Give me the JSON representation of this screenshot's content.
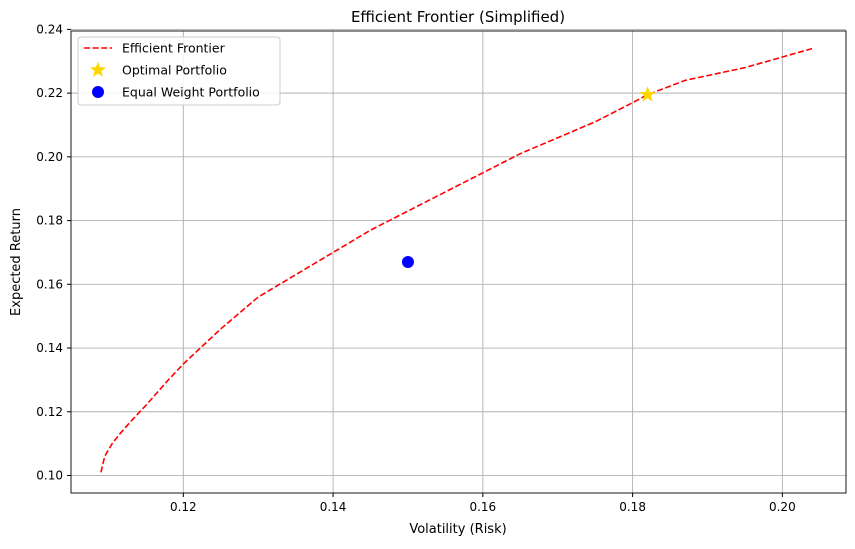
{
  "chart_data": {
    "type": "line",
    "title": "Efficient Frontier (Simplified)",
    "xlabel": "Volatility (Risk)",
    "ylabel": "Expected Return",
    "xlim": [
      0.105,
      0.2085
    ],
    "ylim": [
      0.0945,
      0.2395
    ],
    "xticks": [
      0.12,
      0.14,
      0.16,
      0.18,
      0.2
    ],
    "xtick_labels": [
      "0.12",
      "0.14",
      "0.16",
      "0.18",
      "0.20"
    ],
    "yticks": [
      0.1,
      0.12,
      0.14,
      0.16,
      0.18,
      0.2,
      0.22,
      0.24
    ],
    "ytick_labels": [
      "0.10",
      "0.12",
      "0.14",
      "0.16",
      "0.18",
      "0.20",
      "0.22",
      "0.24"
    ],
    "grid": true,
    "legend_position": "top-left",
    "series": [
      {
        "name": "Efficient Frontier",
        "kind": "line",
        "style": "dashed",
        "color": "#ff0000",
        "points": [
          [
            0.109,
            0.101
          ],
          [
            0.1095,
            0.106
          ],
          [
            0.1105,
            0.11
          ],
          [
            0.1115,
            0.113
          ],
          [
            0.113,
            0.117
          ],
          [
            0.115,
            0.122
          ],
          [
            0.118,
            0.13
          ],
          [
            0.12,
            0.135
          ],
          [
            0.125,
            0.146
          ],
          [
            0.13,
            0.156
          ],
          [
            0.135,
            0.163
          ],
          [
            0.14,
            0.17
          ],
          [
            0.145,
            0.177
          ],
          [
            0.15,
            0.183
          ],
          [
            0.155,
            0.189
          ],
          [
            0.16,
            0.195
          ],
          [
            0.165,
            0.201
          ],
          [
            0.17,
            0.206
          ],
          [
            0.175,
            0.211
          ],
          [
            0.18,
            0.217
          ],
          [
            0.182,
            0.2195
          ],
          [
            0.187,
            0.224
          ],
          [
            0.195,
            0.228
          ],
          [
            0.204,
            0.234
          ]
        ]
      },
      {
        "name": "Optimal Portfolio",
        "kind": "marker",
        "marker": "star",
        "color": "#ffd700",
        "points": [
          [
            0.182,
            0.2195
          ]
        ]
      },
      {
        "name": "Equal Weight Portfolio",
        "kind": "marker",
        "marker": "circle",
        "color": "#0000ff",
        "points": [
          [
            0.15,
            0.167
          ]
        ]
      }
    ]
  }
}
